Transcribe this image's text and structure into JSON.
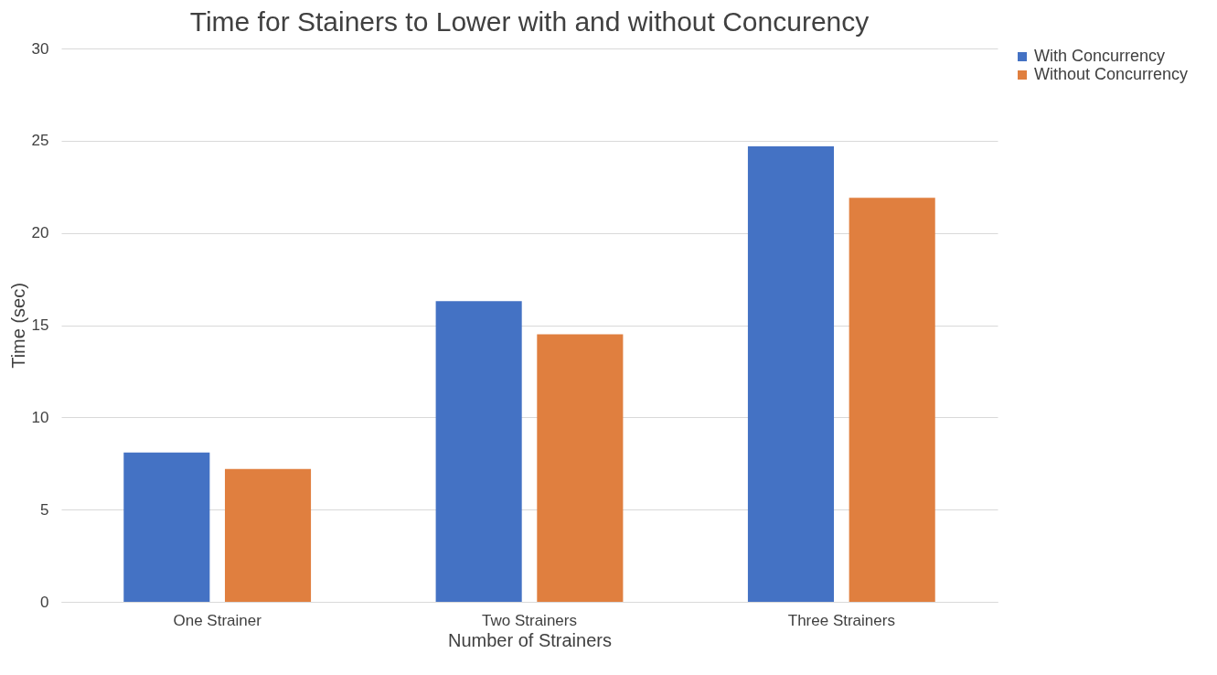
{
  "chart_data": {
    "type": "bar",
    "title": "Time for Stainers to Lower with and without Concurency",
    "xlabel": "Number of Strainers",
    "ylabel": "Time (sec)",
    "categories": [
      "One Strainer",
      "Two Strainers",
      "Three Strainers"
    ],
    "series": [
      {
        "name": "With Concurrency",
        "color": "#4472c4",
        "values": [
          8.1,
          16.3,
          24.7
        ]
      },
      {
        "name": "Without Concurrency",
        "color": "#e07f3f",
        "values": [
          7.2,
          14.5,
          21.9
        ]
      }
    ],
    "ylim": [
      0,
      30
    ],
    "yticks": [
      0,
      5,
      10,
      15,
      20,
      25,
      30
    ],
    "grid": "y",
    "legend": "right"
  }
}
